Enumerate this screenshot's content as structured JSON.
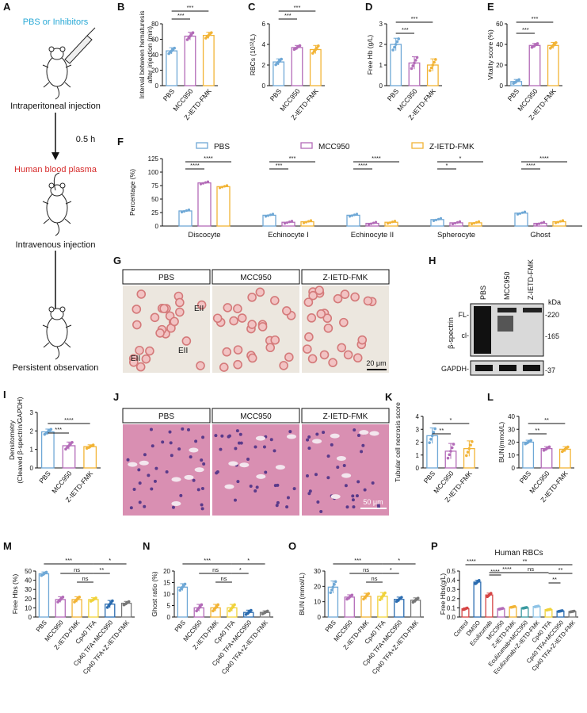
{
  "colors": {
    "blue": "#6fa8d6",
    "purple": "#b36bb8",
    "orange": "#f2b436",
    "lightblue": "#8ec3e6",
    "yellow": "#f0d23a",
    "navy": "#2b6cb0",
    "teal": "#3a9aa0",
    "red": "#d64545",
    "grey": "#777777",
    "brand_blue": "#29a9d6",
    "brand_red": "#d62b2b"
  },
  "schematic": {
    "panel": "A",
    "steps": [
      "PBS or Inhibitors",
      "Intraperitoneal injection",
      "0.5 h",
      "Human blood plasma",
      "Intravenous injection",
      "Persistent observation"
    ]
  },
  "panels": {
    "B": {
      "letter": "B",
      "type": "bar",
      "categories": [
        "PBS",
        "MCC950",
        "Z-IETD-FMK"
      ],
      "values": [
        45,
        64,
        65
      ],
      "sd": [
        4,
        5,
        4
      ],
      "ylabel": "Interval between hematuresis after injection (min)",
      "ylabel1": "Interval between hematuresis",
      "ylabel2": "after injection (min)",
      "yticks": [
        "0",
        "20",
        "40",
        "60",
        "80"
      ],
      "ylim": [
        0,
        80
      ],
      "sig": [
        "***",
        "***"
      ]
    },
    "C": {
      "letter": "C",
      "type": "bar",
      "categories": [
        "PBS",
        "MCC950",
        "Z-IETD-FMK"
      ],
      "values": [
        2.3,
        3.7,
        3.5
      ],
      "sd": [
        0.3,
        0.2,
        0.4
      ],
      "ylabel": "RBCs (10¹²/L)",
      "yticks": [
        "0",
        "2",
        "4",
        "6"
      ],
      "ylim": [
        0,
        6
      ],
      "sig": [
        "***",
        "***"
      ]
    },
    "D": {
      "letter": "D",
      "type": "bar",
      "categories": [
        "PBS",
        "MCC950",
        "Z-IETD-FMK"
      ],
      "values": [
        2.0,
        1.1,
        1.0
      ],
      "sd": [
        0.3,
        0.3,
        0.3
      ],
      "ylabel": "Free Hb (g/L)",
      "yticks": [
        "0",
        "1",
        "2",
        "3"
      ],
      "ylim": [
        0,
        3
      ],
      "sig": [
        "***",
        "***"
      ]
    },
    "E": {
      "letter": "E",
      "type": "bar",
      "categories": [
        "PBS",
        "MCC950",
        "Z-IETD-FMK"
      ],
      "values": [
        4,
        39,
        39
      ],
      "sd": [
        2,
        2,
        3
      ],
      "ylabel": "Vitality score (%)",
      "yticks": [
        "0",
        "20",
        "40",
        "60"
      ],
      "ylim": [
        0,
        60
      ],
      "sig": [
        "***",
        "***"
      ]
    },
    "F": {
      "letter": "F",
      "type": "bar",
      "legend": [
        "PBS",
        "MCC950",
        "Z-IETD-FMK"
      ],
      "categories": [
        "Discocyte",
        "Echinocyte I",
        "Echinocyte II",
        "Spherocyte",
        "Ghost"
      ],
      "series": [
        {
          "name": "PBS",
          "values": [
            28,
            20,
            20,
            12,
            24
          ]
        },
        {
          "name": "MCC950",
          "values": [
            80,
            7,
            5,
            6,
            5
          ]
        },
        {
          "name": "Z-IETD-FMK",
          "values": [
            73,
            8,
            7,
            6,
            8
          ]
        }
      ],
      "ylabel": "Percentage (%)",
      "yticks": [
        "0",
        "25",
        "50",
        "75",
        "100",
        "125"
      ],
      "ylim": [
        0,
        125
      ],
      "sig": [
        [
          "****",
          "****"
        ],
        [
          "***",
          "***"
        ],
        [
          "****",
          "****"
        ],
        [
          "*",
          "*"
        ],
        [
          "****",
          "****"
        ]
      ]
    },
    "G": {
      "letter": "G",
      "titles": [
        "PBS",
        "MCC950",
        "Z-IETD-FMK"
      ],
      "labels": [
        "EII",
        "EII",
        "EII"
      ],
      "scale": "20 μm"
    },
    "H": {
      "letter": "H",
      "lanes": [
        "PBS",
        "MCC950",
        "Z-IETD-FMK"
      ],
      "kda": "kDa",
      "markers": [
        "-220",
        "-165",
        "-37"
      ],
      "fl": "FL-",
      "cl": "cl-",
      "protein": "β-spectrin",
      "loading": "GAPDH-"
    },
    "I": {
      "letter": "I",
      "type": "bar",
      "categories": [
        "PBS",
        "MCC950",
        "Z-IETD-FMK"
      ],
      "values": [
        1.95,
        1.2,
        1.15
      ],
      "sd": [
        0.15,
        0.2,
        0.1
      ],
      "ylabel1": "Densitometry",
      "ylabel2": "(Cleaved β-spectrin/GAPDH)",
      "yticks": [
        "0",
        "1",
        "2",
        "3"
      ],
      "ylim": [
        0,
        3
      ],
      "sig": [
        "***",
        "****"
      ]
    },
    "J": {
      "letter": "J",
      "titles": [
        "PBS",
        "MCC950",
        "Z-IETD-FMK"
      ],
      "scale": "50 μm"
    },
    "K": {
      "letter": "K",
      "type": "bar",
      "categories": [
        "PBS",
        "MCC950",
        "Z-IETD-FMK"
      ],
      "values": [
        2.5,
        1.3,
        1.5
      ],
      "sd": [
        0.6,
        0.6,
        0.6
      ],
      "ylabel": "Tubular cell necrosis score",
      "yticks": [
        "0",
        "1",
        "2",
        "3",
        "4"
      ],
      "ylim": [
        0,
        4
      ],
      "sig": [
        "**",
        "*"
      ]
    },
    "L": {
      "letter": "L",
      "type": "bar",
      "categories": [
        "PBS",
        "MCC950",
        "Z-IETD-FMK"
      ],
      "values": [
        20,
        15,
        14.5
      ],
      "sd": [
        1.5,
        1.5,
        2
      ],
      "ylabel": "BUN(mmol/L)",
      "yticks": [
        "0",
        "10",
        "20",
        "30",
        "40"
      ],
      "ylim": [
        0,
        40
      ],
      "sig": [
        "**",
        "**"
      ]
    },
    "M": {
      "letter": "M",
      "type": "bar",
      "categories": [
        "PBS",
        "MCC950",
        "Z-IETD-FMK",
        "Cp40 TFA",
        "Cp40 TFA+MCC950",
        "Cp40 TFA+Z-IETD-FMK"
      ],
      "values": [
        47,
        19,
        19,
        19,
        14,
        15
      ],
      "sd": [
        2,
        3,
        3,
        2,
        4,
        2
      ],
      "ylabel": "Free Hbs (%)",
      "yticks": [
        "0",
        "10",
        "20",
        "30",
        "40",
        "50"
      ],
      "ylim": [
        0,
        50
      ],
      "sig": [
        "***",
        "ns",
        "ns",
        "*",
        "**"
      ]
    },
    "N": {
      "letter": "N",
      "type": "bar",
      "categories": [
        "PBS",
        "MCC950",
        "Z-IETD-FMK",
        "Cp40 TFA",
        "Cp40 TFA+MCC950",
        "Cp40 TFA+Z-IETD-FMK"
      ],
      "values": [
        13,
        4,
        4,
        4,
        2,
        2
      ],
      "sd": [
        1.5,
        1.5,
        1.5,
        1.5,
        1,
        0.7
      ],
      "ylabel": "Ghost ratio (%)",
      "yticks": [
        "0",
        "5",
        "10",
        "15",
        "20"
      ],
      "ylim": [
        0,
        20
      ],
      "sig": [
        "***",
        "ns",
        "ns",
        "*",
        "*"
      ]
    },
    "O": {
      "letter": "O",
      "type": "bar",
      "categories": [
        "PBS",
        "MCC950",
        "Z-IETD-FMK",
        "Cp40 TFA",
        "Cp40 TFA+MCC950",
        "Cp40 TFA+Z-IETD-FMK"
      ],
      "values": [
        19.5,
        13,
        13.5,
        13.5,
        11.5,
        11
      ],
      "sd": [
        4,
        1.5,
        2,
        2.5,
        1.5,
        1.5
      ],
      "ylabel": "BUN (mmol/L)",
      "yticks": [
        "0",
        "10",
        "20",
        "30"
      ],
      "ylim": [
        0,
        30
      ],
      "sig": [
        "***",
        "ns",
        "ns",
        "*",
        "*"
      ]
    },
    "P": {
      "letter": "P",
      "type": "bar",
      "title": "Human RBCs",
      "categories": [
        "Control",
        "DMSO",
        "Eculizumab",
        "MCC950",
        "Z-IETD-FMK",
        "Eculizumab+MCC950",
        "Eculizumab+Z-IETD-FMK",
        "Cp40 TFA",
        "Cp40 TFA+MCC950",
        "Cp40 TFA+Z-IETD-FMK"
      ],
      "values": [
        0.09,
        0.38,
        0.24,
        0.09,
        0.11,
        0.1,
        0.115,
        0.08,
        0.065,
        0.06
      ],
      "sd": [
        0.01,
        0.02,
        0.02,
        0.005,
        0.005,
        0.005,
        0.005,
        0.005,
        0.005,
        0.005
      ],
      "ylabel": "Free Hbs(g/L)",
      "yticks": [
        "0.0",
        "0.1",
        "0.2",
        "0.3",
        "0.4",
        "0.5"
      ],
      "ylim": [
        0,
        0.5
      ],
      "sig": [
        "****",
        "**",
        "****",
        "****",
        "ns",
        "**",
        "**"
      ]
    }
  }
}
